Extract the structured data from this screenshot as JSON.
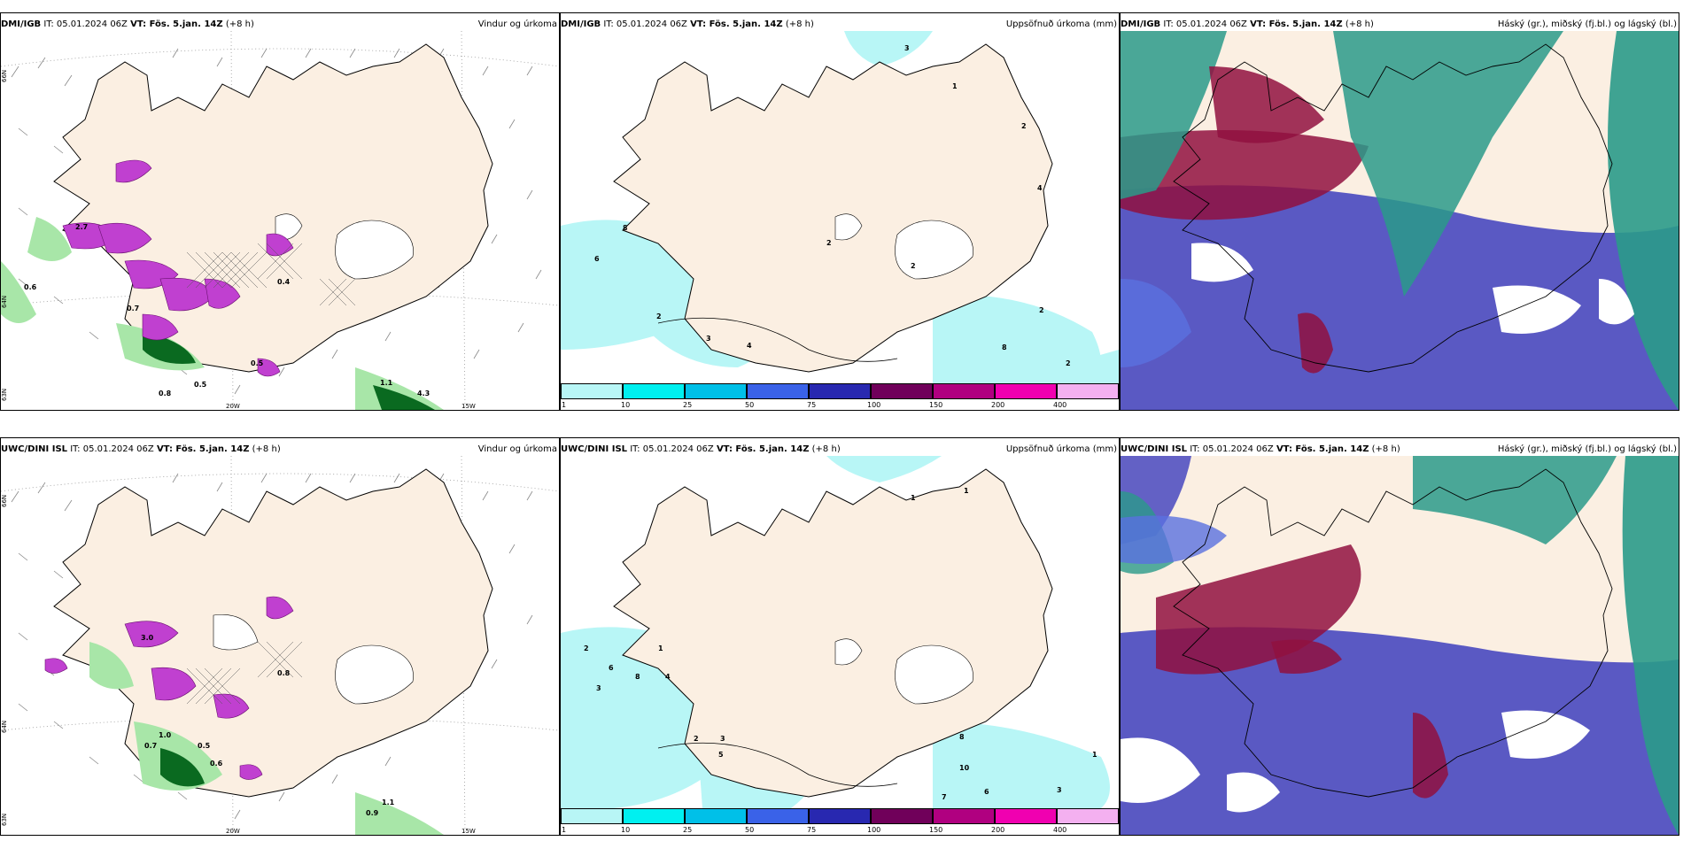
{
  "rows": [
    {
      "model": "DMI/IGB",
      "it": "IT: 05.01.2024 06Z",
      "vt": "VT: Fös. 5.jan. 14Z",
      "lead": "(+8 h)"
    },
    {
      "model": "UWC/DINI ISL",
      "it": "IT: 05.01.2024 06Z",
      "vt": "VT: Fös. 5.jan. 14Z",
      "lead": "(+8 h)"
    }
  ],
  "panel_titles": {
    "wind": "Vindur og úrkoma",
    "precip": "Uppsöfnuð úrkoma (mm)",
    "cloud": "Háský (gr.), miðský (fj.bl.) og lágský (bl.)"
  },
  "axis_labels": {
    "lat66": "66N",
    "lat64": "64N",
    "lat63": "63N",
    "lon20": "20W",
    "lon15": "15W"
  },
  "colorbar": {
    "labels": [
      "1",
      "10",
      "25",
      "50",
      "75",
      "100",
      "150",
      "200",
      "400"
    ],
    "colors": [
      "#b8f6f6",
      "#00f0f0",
      "#00c0e8",
      "#3a62e8",
      "#2828b0",
      "#70005a",
      "#b00080",
      "#f000b0",
      "#f4b0f0"
    ]
  },
  "wind_labels_top": [
    "0.6",
    "0.7",
    "0.5",
    "0.8",
    "0.4",
    "0.5",
    "1.1",
    "4.3",
    "2.7"
  ],
  "wind_labels_bottom": [
    "3.0",
    "1.0",
    "0.7",
    "0.5",
    "0.6",
    "0.9",
    "1.1",
    "0.8"
  ],
  "precip_labels_top": [
    "3",
    "1",
    "2",
    "4",
    "8",
    "6",
    "2",
    "3",
    "4",
    "2",
    "2",
    "8",
    "2",
    "2"
  ],
  "precip_labels_bottom": [
    "1",
    "1",
    "2",
    "1",
    "3",
    "6",
    "8",
    "4",
    "2",
    "3",
    "5",
    "8",
    "10",
    "7",
    "6",
    "3",
    "1"
  ],
  "colors": {
    "land": "#fbefe2",
    "precip_light": "#b8f6f6",
    "green_light": "#a8e6a8",
    "green_dark": "#0a6a20",
    "purple": "#c040d0",
    "cloud_blue": "#4848c0",
    "cloud_red": "#901040",
    "cloud_teal": "#2a9a8a"
  }
}
